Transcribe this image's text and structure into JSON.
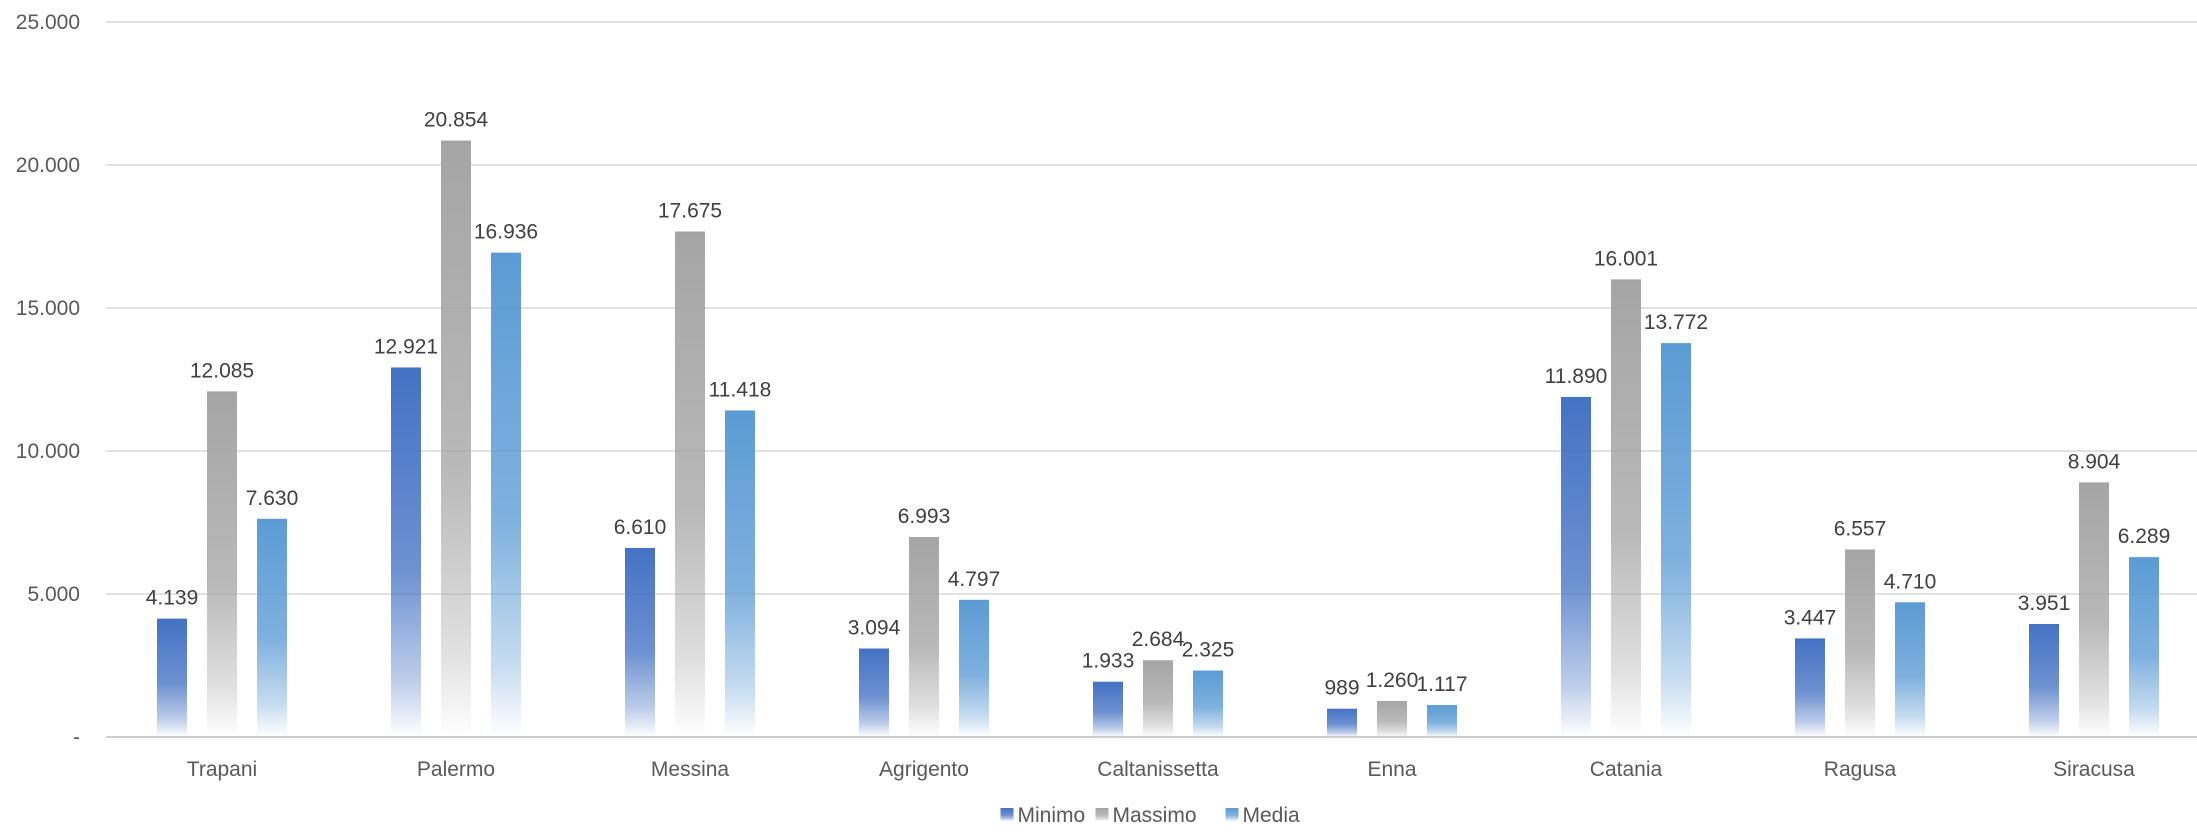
{
  "chart_data": {
    "type": "bar",
    "title": "",
    "xlabel": "",
    "ylabel": "",
    "ylim": [
      0,
      25000
    ],
    "yticks": [
      0,
      5000,
      10000,
      15000,
      20000,
      25000
    ],
    "ytick_labels": [
      "-",
      "5.000",
      "10.000",
      "15.000",
      "20.000",
      "25.000"
    ],
    "grid": true,
    "legend_position": "bottom",
    "categories": [
      "Trapani",
      "Palermo",
      "Messina",
      "Agrigento",
      "Caltanissetta",
      "Enna",
      "Catania",
      "Ragusa",
      "Siracusa"
    ],
    "series": [
      {
        "name": "Minimo",
        "color": "#4472C4",
        "values": [
          4139,
          12921,
          6610,
          3094,
          1933,
          989,
          11890,
          3447,
          3951
        ],
        "labels": [
          "4.139",
          "12.921",
          "6.610",
          "3.094",
          "1.933",
          "989",
          "11.890",
          "3.447",
          "3.951"
        ]
      },
      {
        "name": "Massimo",
        "color": "#A5A5A5",
        "values": [
          12085,
          20854,
          17675,
          6993,
          2684,
          1260,
          16001,
          6557,
          8904
        ],
        "labels": [
          "12.085",
          "20.854",
          "17.675",
          "6.993",
          "2.684",
          "1.260",
          "16.001",
          "6.557",
          "8.904"
        ]
      },
      {
        "name": "Media",
        "color": "#5B9BD5",
        "values": [
          7630,
          16936,
          11418,
          4797,
          2325,
          1117,
          13772,
          4710,
          6289
        ],
        "labels": [
          "7.630",
          "16.936",
          "11.418",
          "4.797",
          "2.325",
          "1.117",
          "13.772",
          "4.710",
          "6.289"
        ]
      }
    ]
  }
}
